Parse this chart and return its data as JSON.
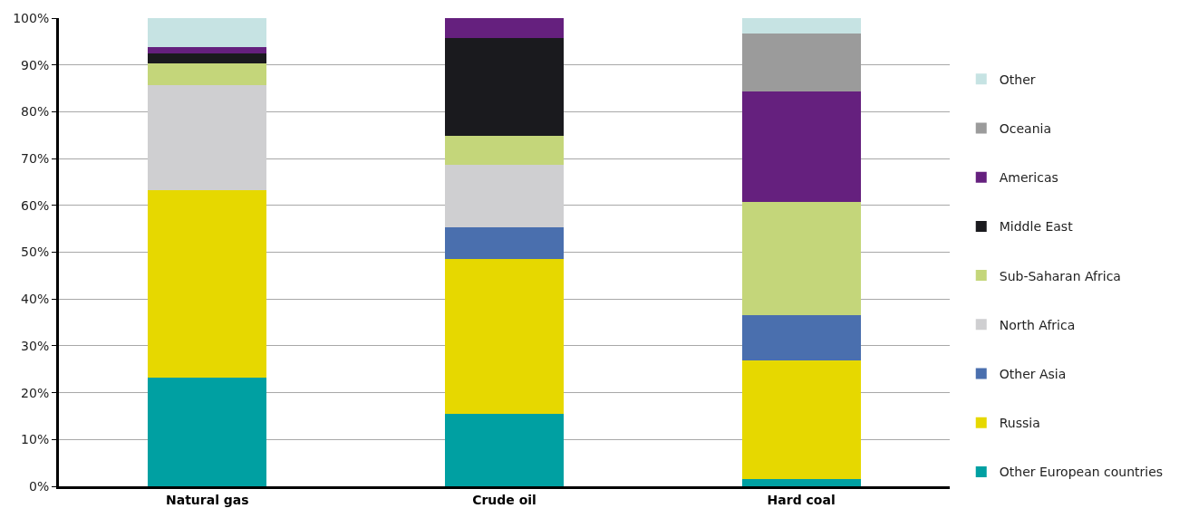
{
  "chart_data": {
    "type": "bar",
    "stacked": true,
    "categories": [
      "Natural gas",
      "Crude oil",
      "Hard coal"
    ],
    "series": [
      {
        "name": "Other European countries",
        "color": "#00a0a2",
        "values": [
          23.2,
          15.4,
          1.6
        ]
      },
      {
        "name": "Russia",
        "color": "#e6d800",
        "values": [
          40,
          33.2,
          25.2
        ]
      },
      {
        "name": "Other Asia",
        "color": "#4a6fae",
        "values": [
          0,
          6.8,
          9.8
        ]
      },
      {
        "name": "North Africa",
        "color": "#cfcfd1",
        "values": [
          22.5,
          13.2,
          0
        ]
      },
      {
        "name": "Sub-Saharan Africa",
        "color": "#c4d67a",
        "values": [
          4.7,
          6.3,
          24.2
        ]
      },
      {
        "name": "Middle East",
        "color": "#1a1a1e",
        "values": [
          2.0,
          20.8,
          0
        ]
      },
      {
        "name": "Americas",
        "color": "#65207e",
        "values": [
          1.4,
          4.3,
          23.5
        ]
      },
      {
        "name": "Oceania",
        "color": "#9b9b9b",
        "values": [
          0,
          0,
          12.5
        ]
      },
      {
        "name": "Other",
        "color": "#c6e3e3",
        "values": [
          6.2,
          0,
          3.2
        ]
      }
    ],
    "ylim": [
      0,
      100
    ],
    "yticks": [
      {
        "value": 0,
        "label": "0%"
      },
      {
        "value": 10,
        "label": "10%"
      },
      {
        "value": 20,
        "label": "20%"
      },
      {
        "value": 30,
        "label": "30%"
      },
      {
        "value": 40,
        "label": "40%"
      },
      {
        "value": 50,
        "label": "50%"
      },
      {
        "value": 60,
        "label": "60%"
      },
      {
        "value": 70,
        "label": "70%"
      },
      {
        "value": 80,
        "label": "80%"
      },
      {
        "value": 90,
        "label": "90%"
      },
      {
        "value": 100,
        "label": "100%"
      }
    ],
    "grid": "y",
    "legend": "right"
  }
}
